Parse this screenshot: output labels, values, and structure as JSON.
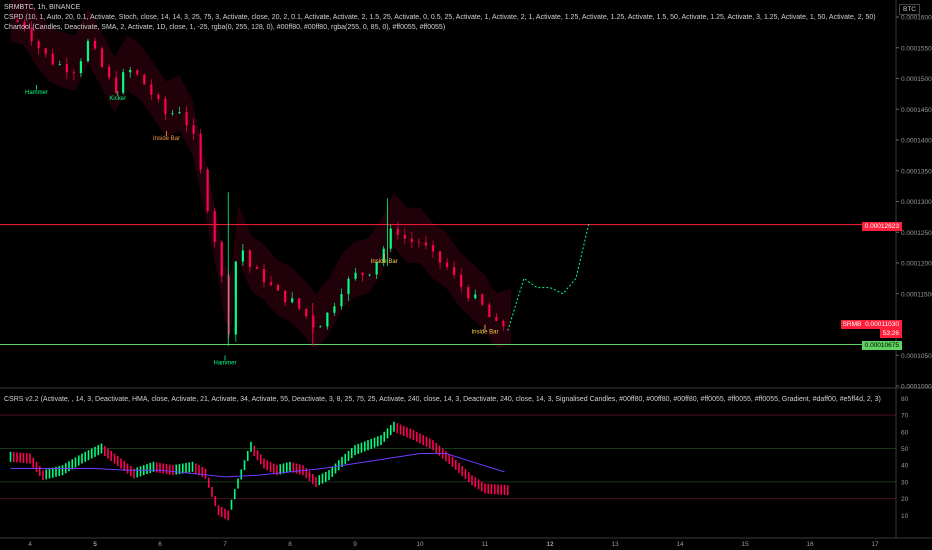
{
  "headers": {
    "symbol_line": "SRMBTC, 1h, BINANCE",
    "cspd_line": "CSPD (10, 1, Auto, 20, 0.1, Activate, Stoch, close, 14, 14, 3, 25, 75, 3, Activate, close, 20, 2, 0.1, Activate, Activate, 2, 1.5, 25, Activate, 0, 0.5, 25, Activate, 1, Activate, 2, 1, Activate, 1.25, Activate, 1.25, Activate, 1.5, 50, Activate, 1.25, Activate, 3, 1.25, Activate, 1, 50, Activate, 2, 50)",
    "chartool_line": "Chartool (Candles, Deactivate, SMA, 2, Activate, 1D, close, 1, -25, rgba(0, 255, 128, 0), #00ff80, #00ff80, rgba(255, 0, 85, 0), #ff0055, #ff0055)",
    "csrs_line": "CSRS v2.2 (Activate, , 14, 3, Deactivate, HMA, close, Activate, 21, Activate, 34, Activate, 55, Deactivate, 3, 8, 25, 75, 25, Activate, 240, close, 14, 3, Deactivate, 240, close, 14, 3, Signalised Candles, #00ff80, #00ff80, #00ff80, #ff0055, #ff0055, #ff0055, Gradient, #daff00, #e5ff4d, 2, 3)"
  },
  "currency_tag": "BTC",
  "price_axis": {
    "labels": [
      "0.00016000",
      "0.00015500",
      "0.00015000",
      "0.00014500",
      "0.00014000",
      "0.00013500",
      "0.00013000",
      "0.00012500",
      "0.00012000",
      "0.00011500",
      "0.00010500",
      "0.00010000"
    ]
  },
  "price_tags": {
    "resistance": "0.00012623",
    "symbol": "SRMBTC",
    "last": "0.00011030",
    "countdown": "53:26",
    "support": "0.00010675"
  },
  "osc_axis": {
    "labels": [
      "80",
      "70",
      "60",
      "50",
      "40",
      "30",
      "20",
      "10"
    ]
  },
  "time_axis": {
    "labels": [
      {
        "text": "4",
        "bold": false
      },
      {
        "text": "5",
        "bold": true
      },
      {
        "text": "6",
        "bold": false
      },
      {
        "text": "7",
        "bold": false
      },
      {
        "text": "8",
        "bold": false
      },
      {
        "text": "9",
        "bold": false
      },
      {
        "text": "10",
        "bold": false
      },
      {
        "text": "11",
        "bold": false
      },
      {
        "text": "12",
        "bold": true
      },
      {
        "text": "13",
        "bold": false
      },
      {
        "text": "14",
        "bold": false
      },
      {
        "text": "15",
        "bold": false
      },
      {
        "text": "16",
        "bold": false
      },
      {
        "text": "17",
        "bold": false
      }
    ]
  },
  "pattern_labels": [
    {
      "text": "Hammer",
      "color": "#00ff80"
    },
    {
      "text": "Kicker",
      "color": "#00ff80"
    },
    {
      "text": "Inside Bar",
      "color": "#ff9944"
    },
    {
      "text": "Hammer",
      "color": "#00ff80"
    },
    {
      "text": "Inside Bar",
      "color": "#ffd24d"
    },
    {
      "text": "Inside Bar",
      "color": "#ffd24d"
    }
  ],
  "colors": {
    "bull": "#00ff80",
    "bear": "#ff0055",
    "resistance": "#ff1f3a",
    "support": "#5fd35f",
    "purple": "#6f3cff"
  },
  "chart_data": [
    {
      "type": "candlestick",
      "title": "SRMBTC, 1h, BINANCE",
      "x_range": [
        "4",
        "17"
      ],
      "y_range": [
        0.0001,
        0.00016
      ],
      "close_path": [
        [
          3.7,
          0.0001595
        ],
        [
          3.9,
          0.000159
        ],
        [
          4.1,
          0.0001555
        ],
        [
          4.3,
          0.000153
        ],
        [
          4.5,
          0.000152
        ],
        [
          4.7,
          0.0001515
        ],
        [
          4.9,
          0.000156
        ],
        [
          5.1,
          0.000152
        ],
        [
          5.3,
          0.000148
        ],
        [
          5.5,
          0.0001515
        ],
        [
          5.7,
          0.00015
        ],
        [
          5.9,
          0.000147
        ],
        [
          6.1,
          0.000144
        ],
        [
          6.3,
          0.000145
        ],
        [
          6.5,
          0.000141
        ],
        [
          6.6,
          0.000136
        ],
        [
          6.8,
          0.000126
        ],
        [
          6.9,
          0.000121
        ],
        [
          7.0,
          0.000114
        ],
        [
          7.05,
          0.0001085
        ],
        [
          7.1,
          0.000113
        ],
        [
          7.2,
          0.000124
        ],
        [
          7.4,
          0.000119
        ],
        [
          7.6,
          0.0001175
        ],
        [
          7.8,
          0.000115
        ],
        [
          8.0,
          0.000114
        ],
        [
          8.2,
          0.000112
        ],
        [
          8.4,
          0.0001095
        ],
        [
          8.6,
          0.000112
        ],
        [
          8.8,
          0.000116
        ],
        [
          9.0,
          0.000118
        ],
        [
          9.2,
          0.0001185
        ],
        [
          9.4,
          0.0001215
        ],
        [
          9.6,
          0.000126
        ],
        [
          9.8,
          0.0001235
        ],
        [
          10.0,
          0.0001235
        ],
        [
          10.2,
          0.000121
        ],
        [
          10.4,
          0.0001195
        ],
        [
          10.6,
          0.0001165
        ],
        [
          10.8,
          0.0001145
        ],
        [
          11.0,
          0.0001125
        ],
        [
          11.1,
          0.0001105
        ],
        [
          11.2,
          0.0001095
        ],
        [
          11.35,
          0.0001103
        ]
      ],
      "projection": [
        [
          11.35,
          0.000109
        ],
        [
          11.6,
          0.0001175
        ],
        [
          11.8,
          0.000116
        ],
        [
          12.0,
          0.000116
        ],
        [
          12.2,
          0.000115
        ],
        [
          12.4,
          0.0001175
        ],
        [
          12.6,
          0.0001265
        ]
      ],
      "resistance": 0.00012623,
      "support": 0.00010675
    },
    {
      "type": "bar",
      "title": "CSRS v2.2",
      "y_range": [
        0,
        85
      ],
      "x_range": [
        "4",
        "17"
      ],
      "line_levels": [
        70,
        50,
        30,
        20
      ],
      "histogram_path": [
        [
          3.7,
          48
        ],
        [
          4.0,
          47
        ],
        [
          4.2,
          37
        ],
        [
          4.5,
          40
        ],
        [
          4.8,
          47
        ],
        [
          5.1,
          53
        ],
        [
          5.3,
          47
        ],
        [
          5.6,
          38
        ],
        [
          5.9,
          42
        ],
        [
          6.2,
          40
        ],
        [
          6.5,
          42
        ],
        [
          6.7,
          38
        ],
        [
          6.9,
          16
        ],
        [
          7.05,
          13
        ],
        [
          7.2,
          32
        ],
        [
          7.4,
          54
        ],
        [
          7.6,
          44
        ],
        [
          7.8,
          40
        ],
        [
          8.0,
          42
        ],
        [
          8.2,
          40
        ],
        [
          8.4,
          33
        ],
        [
          8.6,
          37
        ],
        [
          8.8,
          45
        ],
        [
          9.0,
          52
        ],
        [
          9.2,
          55
        ],
        [
          9.4,
          58
        ],
        [
          9.6,
          66
        ],
        [
          9.9,
          61
        ],
        [
          10.2,
          55
        ],
        [
          10.5,
          45
        ],
        [
          10.8,
          34
        ],
        [
          11.0,
          29
        ],
        [
          11.35,
          28
        ]
      ],
      "slow_line_path": [
        [
          3.7,
          38
        ],
        [
          4.5,
          38
        ],
        [
          5.0,
          38
        ],
        [
          5.5,
          37
        ],
        [
          6.0,
          37
        ],
        [
          6.5,
          35
        ],
        [
          7.0,
          33
        ],
        [
          7.5,
          34
        ],
        [
          8.0,
          36
        ],
        [
          8.5,
          38
        ],
        [
          9.0,
          41
        ],
        [
          9.5,
          44
        ],
        [
          10.0,
          47
        ],
        [
          10.4,
          47
        ],
        [
          10.8,
          42
        ],
        [
          11.3,
          36
        ]
      ]
    }
  ]
}
